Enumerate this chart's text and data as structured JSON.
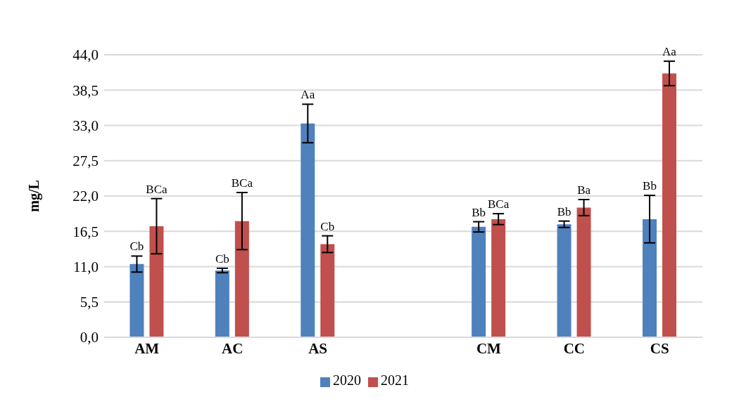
{
  "chart_data": {
    "type": "bar",
    "ylabel": "mg/L",
    "categories": [
      "AM",
      "AC",
      "AS",
      null,
      "CM",
      "CC",
      "CS"
    ],
    "series": [
      {
        "name": "2020",
        "color": "#4f81bd",
        "values": [
          11.4,
          10.4,
          33.3,
          null,
          17.2,
          17.6,
          18.4
        ],
        "errors": [
          1.25,
          0.35,
          3.0,
          null,
          0.8,
          0.5,
          3.7
        ],
        "value_labels": [
          "Cb",
          "Cb",
          "Aa",
          null,
          "Bb",
          "Bb",
          "Bb"
        ]
      },
      {
        "name": "2021",
        "color": "#c0504d",
        "values": [
          17.3,
          18.1,
          14.5,
          null,
          18.4,
          20.2,
          41.1
        ],
        "errors": [
          4.3,
          4.45,
          1.3,
          null,
          0.85,
          1.25,
          1.9
        ],
        "value_labels": [
          "BCa",
          "BCa",
          "Cb",
          null,
          "BCa",
          "Ba",
          "Aa"
        ]
      }
    ],
    "ylim": [
      0,
      44
    ],
    "yticks": [
      {
        "value": 0,
        "label": "0,0"
      },
      {
        "value": 5.5,
        "label": "5,5"
      },
      {
        "value": 11,
        "label": "11,0"
      },
      {
        "value": 16.5,
        "label": "16,5"
      },
      {
        "value": 22,
        "label": "22,0"
      },
      {
        "value": 27.5,
        "label": "27,5"
      },
      {
        "value": 33,
        "label": "33,0"
      },
      {
        "value": 38.5,
        "label": "38,5"
      },
      {
        "value": 44,
        "label": "44,0"
      }
    ],
    "grid": "y",
    "legend": "bottom"
  }
}
